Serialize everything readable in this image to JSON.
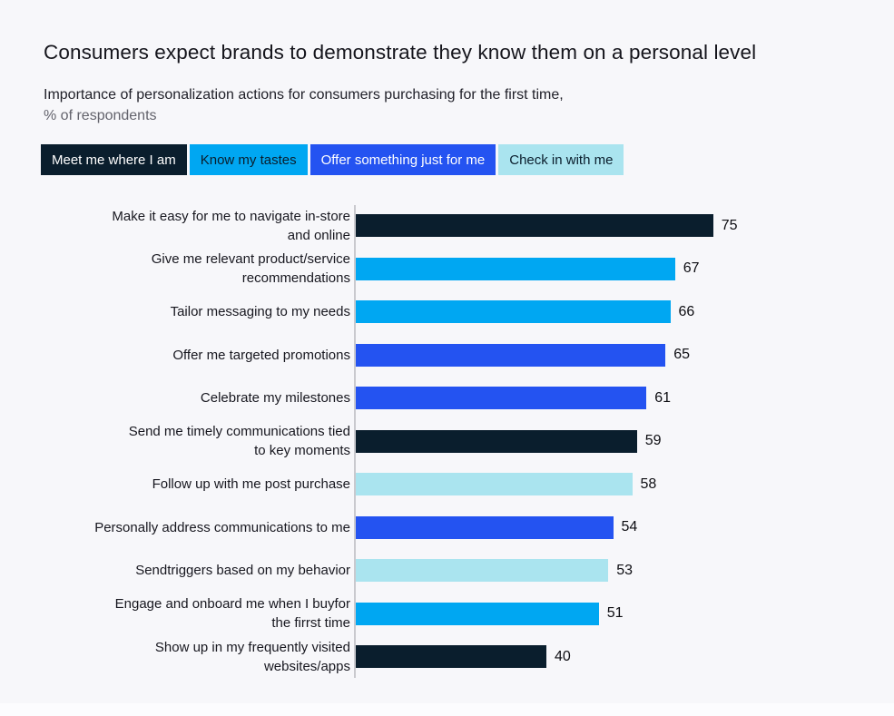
{
  "page": {
    "background_color": "#f7f7fa",
    "footer_strip_color": "#fcfcfe",
    "axis_line_color": "#c9c9ce"
  },
  "header": {
    "title": "Consumers expect brands to demonstrate they know them on a personal level",
    "subtitle_line1": "Importance of personalization actions for consumers purchasing for the first time,",
    "subtitle_line2": "% of respondents"
  },
  "chart_data": {
    "type": "bar",
    "orientation": "horizontal",
    "title": "Consumers expect brands to demonstrate they know them on a personal level",
    "subtitle": "Importance of personalization actions for consumers purchasing for the first time, % of respondents",
    "legend_position": "top",
    "grid": false,
    "value_axis_range": [
      0,
      100
    ],
    "series_legend": [
      {
        "name": "Meet me where I am",
        "color": "#0a1e2d",
        "text_color": "#ffffff"
      },
      {
        "name": "Know my tastes",
        "color": "#00a7f2",
        "text_color": "#0a1e2d"
      },
      {
        "name": "Offer something just for me",
        "color": "#2453f1",
        "text_color": "#ffffff"
      },
      {
        "name": "Check in with me",
        "color": "#aae4ef",
        "text_color": "#0a1e2d"
      }
    ],
    "bars": [
      {
        "label": "Make it easy for me to navigate in-store and online",
        "label_lines": [
          "Make it easy for me to navigate in-store",
          "and online"
        ],
        "value": 75,
        "series": "Meet me where I am"
      },
      {
        "label": "Give me relevant product/service recommendations",
        "label_lines": [
          "Give me relevant product/service",
          "recommendations"
        ],
        "value": 67,
        "series": "Know my tastes"
      },
      {
        "label": "Tailor messaging to my needs",
        "label_lines": [
          "Tailor messaging to my needs"
        ],
        "value": 66,
        "series": "Know my tastes"
      },
      {
        "label": "Offer me targeted promotions",
        "label_lines": [
          "Offer me targeted promotions"
        ],
        "value": 65,
        "series": "Offer something just for me"
      },
      {
        "label": "Celebrate my milestones",
        "label_lines": [
          "Celebrate my milestones"
        ],
        "value": 61,
        "series": "Offer something just for me"
      },
      {
        "label": "Send me timely communications tied to key moments",
        "label_lines": [
          "Send me timely communications tied",
          "to key moments"
        ],
        "value": 59,
        "series": "Meet me where I am"
      },
      {
        "label": "Follow up with me post purchase",
        "label_lines": [
          "Follow up with me post purchase"
        ],
        "value": 58,
        "series": "Check in with me"
      },
      {
        "label": "Personally address communications to me",
        "label_lines": [
          "Personally address communications to me"
        ],
        "value": 54,
        "series": "Offer something just for me"
      },
      {
        "label": "Sendtriggers based on my behavior",
        "label_lines": [
          "Sendtriggers based on my behavior"
        ],
        "value": 53,
        "series": "Check in with me"
      },
      {
        "label": "Engage and onboard me when I buyfor the firrst time",
        "label_lines": [
          "Engage and onboard me when I buyfor",
          "the firrst time"
        ],
        "value": 51,
        "series": "Know my tastes"
      },
      {
        "label": "Show up in my frequently visited websites/apps",
        "label_lines": [
          "Show up in my frequently visited",
          "websites/apps"
        ],
        "value": 40,
        "series": "Meet me where I am"
      }
    ]
  }
}
